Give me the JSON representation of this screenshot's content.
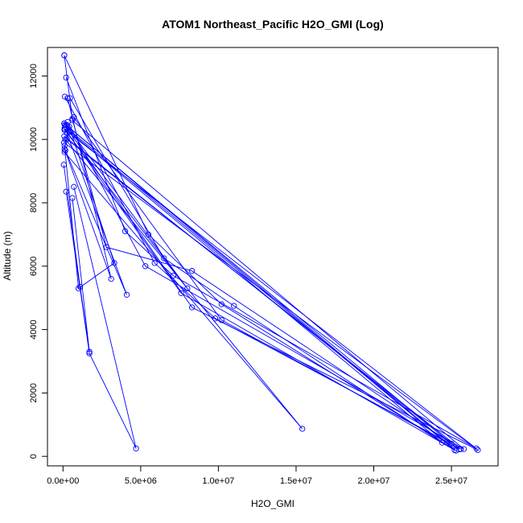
{
  "chart_data": {
    "type": "scatter",
    "title": "ATOM1 Northeast_Pacific H2O_GMI (Log)",
    "xlabel": "H2O_GMI",
    "ylabel": "Altitude (m)",
    "xlim": [
      -1000000,
      28000000
    ],
    "ylim": [
      -300,
      12900
    ],
    "x_ticks": [
      0,
      5000000,
      10000000,
      15000000,
      20000000,
      25000000
    ],
    "x_tick_labels": [
      "0.0e+00",
      "5.0e+06",
      "1.0e+07",
      "1.5e+07",
      "2.0e+07",
      "2.5e+07"
    ],
    "y_ticks": [
      0,
      2000,
      4000,
      6000,
      8000,
      10000,
      12000
    ],
    "y_tick_labels": [
      "0",
      "2000",
      "4000",
      "6000",
      "8000",
      "10000",
      "12000"
    ],
    "grid": false,
    "legend": "none",
    "colors": {
      "series": "#0000ff",
      "axis": "#000000"
    },
    "series": [
      {
        "points": [
          [
            80000,
            12650
          ],
          [
            600000,
            10650
          ],
          [
            2800000,
            6600
          ],
          [
            8300000,
            5850
          ],
          [
            25000000,
            400
          ],
          [
            80000,
            10500
          ]
        ]
      },
      {
        "points": [
          [
            80000,
            12650
          ],
          [
            5500000,
            7000
          ],
          [
            10200000,
            4800
          ],
          [
            25300000,
            180
          ],
          [
            80000,
            10500
          ]
        ]
      },
      {
        "points": [
          [
            200000,
            11950
          ],
          [
            4000000,
            7100
          ],
          [
            7100000,
            5700
          ],
          [
            26600000,
            250
          ],
          [
            120000,
            10300
          ]
        ]
      },
      {
        "points": [
          [
            120000,
            11350
          ],
          [
            5900000,
            6100
          ],
          [
            9800000,
            4350
          ],
          [
            25600000,
            230
          ],
          [
            250000,
            10000
          ]
        ]
      },
      {
        "points": [
          [
            450000,
            11300
          ],
          [
            6500000,
            6250
          ],
          [
            11000000,
            4750
          ],
          [
            24400000,
            430
          ],
          [
            400000,
            10250
          ]
        ]
      },
      {
        "points": [
          [
            300000,
            11300
          ],
          [
            3100000,
            5600
          ],
          [
            100000,
            9700
          ],
          [
            400000,
            10400
          ],
          [
            3300000,
            6100
          ],
          [
            1000000,
            5300
          ],
          [
            100000,
            9800
          ]
        ]
      },
      {
        "points": [
          [
            120000,
            10450
          ],
          [
            8300000,
            4700
          ],
          [
            26700000,
            200
          ],
          [
            60000,
            9900
          ]
        ]
      },
      {
        "points": [
          [
            700000,
            10700
          ],
          [
            10200000,
            4300
          ],
          [
            25500000,
            220
          ],
          [
            80000,
            10100
          ]
        ]
      },
      {
        "points": [
          [
            100000,
            10350
          ],
          [
            7600000,
            5150
          ],
          [
            25200000,
            200
          ],
          [
            150000,
            10400
          ]
        ]
      },
      {
        "points": [
          [
            300000,
            10550
          ],
          [
            5300000,
            6000
          ],
          [
            25800000,
            230
          ],
          [
            600000,
            10600
          ]
        ]
      },
      {
        "points": [
          [
            250000,
            10200
          ],
          [
            4100000,
            5100
          ],
          [
            150000,
            9650
          ]
        ]
      },
      {
        "points": [
          [
            150000,
            10000
          ],
          [
            15400000,
            870
          ],
          [
            100000,
            9600
          ]
        ]
      },
      {
        "points": [
          [
            100000,
            10300
          ],
          [
            8000000,
            5300
          ],
          [
            200000,
            10450
          ]
        ]
      },
      {
        "points": [
          [
            50000,
            9200
          ],
          [
            1100000,
            5350
          ],
          [
            1700000,
            3300
          ],
          [
            600000,
            8150
          ]
        ]
      },
      {
        "points": [
          [
            200000,
            8350
          ],
          [
            1700000,
            3250
          ],
          [
            4700000,
            250
          ],
          [
            700000,
            8500
          ]
        ]
      }
    ]
  }
}
